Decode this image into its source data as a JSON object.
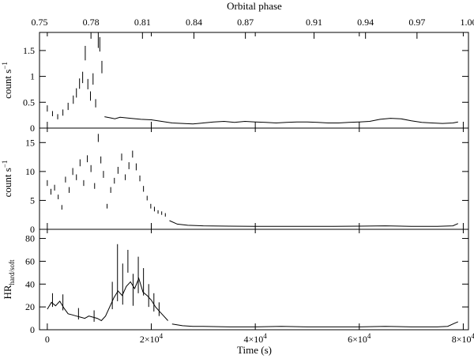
{
  "chart_data": {
    "type": "line",
    "top_axis": {
      "label": "Orbital phase",
      "tick_labels": [
        "0.75",
        "0.78",
        "0.81",
        "0.84",
        "0.87",
        "0.91",
        "0.94",
        "0.97",
        "1.00"
      ],
      "tick_values": [
        0.75,
        0.78,
        0.81,
        0.84,
        0.87,
        0.91,
        0.94,
        0.97,
        1.0
      ],
      "range": [
        0.75,
        1.0
      ]
    },
    "x_axis": {
      "label": "Time (s)",
      "range": [
        -1500,
        81000
      ],
      "ticks": [
        {
          "value": 0,
          "base": "0",
          "exp": ""
        },
        {
          "value": 20000,
          "base": "2×10",
          "exp": "4"
        },
        {
          "value": 40000,
          "base": "4×10",
          "exp": "4"
        },
        {
          "value": 60000,
          "base": "6×10",
          "exp": "4"
        },
        {
          "value": 80000,
          "base": "8×10",
          "exp": "4"
        }
      ]
    },
    "panels": [
      {
        "ylabel_main": "count s",
        "ylabel_sup": "−1",
        "ylabel_sub": "",
        "ylim": [
          0,
          1.85
        ],
        "yticks": [
          {
            "value": 0,
            "label": "0"
          },
          {
            "value": 0.5,
            "label": "0.5"
          },
          {
            "value": 1,
            "label": "1"
          },
          {
            "value": 1.5,
            "label": "1.5"
          }
        ],
        "segments": [
          {
            "style": "errorbars",
            "x": [
              0,
              1000,
              2000,
              3000,
              4000,
              5000,
              5600,
              6200,
              6800,
              7300,
              7800,
              8300,
              8800,
              9300,
              9800,
              10100,
              10500
            ],
            "y": [
              0.38,
              0.28,
              0.22,
              0.3,
              0.42,
              0.55,
              0.68,
              0.86,
              0.98,
              1.45,
              0.85,
              0.62,
              0.95,
              0.48,
              1.7,
              1.62,
              1.18
            ],
            "err": [
              0.06,
              0.05,
              0.05,
              0.06,
              0.07,
              0.08,
              0.09,
              0.1,
              0.11,
              0.14,
              0.1,
              0.09,
              0.11,
              0.08,
              0.15,
              0.14,
              0.12
            ]
          },
          {
            "style": "line",
            "x": [
              11000,
              12000,
              13000,
              14000,
              16000,
              18000,
              20000,
              22000,
              24000,
              26000,
              28000,
              30000,
              32000,
              34000,
              36000,
              38000,
              40000,
              42000,
              44000,
              46000,
              48000,
              50000,
              52000,
              54000,
              56000,
              58000,
              60000,
              62000,
              64000,
              66000,
              68000,
              70000,
              72000,
              74000,
              76000,
              78000,
              79000
            ],
            "y": [
              0.22,
              0.2,
              0.18,
              0.21,
              0.19,
              0.17,
              0.16,
              0.13,
              0.1,
              0.09,
              0.08,
              0.1,
              0.12,
              0.13,
              0.11,
              0.13,
              0.12,
              0.11,
              0.1,
              0.11,
              0.12,
              0.12,
              0.11,
              0.1,
              0.1,
              0.11,
              0.12,
              0.13,
              0.17,
              0.19,
              0.18,
              0.14,
              0.11,
              0.1,
              0.09,
              0.1,
              0.12
            ]
          }
        ]
      },
      {
        "ylabel_main": "count s",
        "ylabel_sup": "−1",
        "ylabel_sub": "",
        "ylim": [
          0,
          17.5
        ],
        "yticks": [
          {
            "value": 0,
            "label": "0"
          },
          {
            "value": 5,
            "label": "5"
          },
          {
            "value": 10,
            "label": "10"
          },
          {
            "value": 15,
            "label": "15"
          }
        ],
        "segments": [
          {
            "style": "errorbars",
            "x": [
              0,
              700,
              1400,
              2100,
              2800,
              3500,
              4200,
              4900,
              5600,
              6300,
              7000,
              7700,
              8400,
              9100,
              9800,
              10300,
              10800,
              11500,
              12200,
              12900,
              13600,
              14300,
              15000,
              15700,
              16400,
              17100,
              17800,
              18500,
              19200,
              19900,
              20600,
              21300,
              22000,
              22700
            ],
            "y": [
              8.0,
              6.5,
              7.2,
              5.6,
              3.8,
              8.6,
              6.8,
              10.0,
              9.0,
              11.5,
              8.0,
              12.2,
              10.5,
              7.5,
              15.8,
              12.0,
              9.5,
              4.0,
              6.8,
              8.4,
              10.2,
              12.5,
              9.0,
              11.0,
              13.0,
              10.8,
              8.8,
              7.0,
              5.4,
              4.0,
              3.5,
              3.0,
              2.8,
              2.5
            ],
            "err": [
              0.5,
              0.5,
              0.5,
              0.4,
              0.4,
              0.5,
              0.5,
              0.6,
              0.5,
              0.6,
              0.5,
              0.6,
              0.6,
              0.5,
              0.7,
              0.6,
              0.6,
              0.4,
              0.5,
              0.5,
              0.6,
              0.6,
              0.5,
              0.6,
              0.6,
              0.6,
              0.5,
              0.5,
              0.4,
              0.4,
              0.4,
              0.3,
              0.3,
              0.3
            ]
          },
          {
            "style": "line",
            "x": [
              23500,
              25000,
              27000,
              30000,
              35000,
              40000,
              45000,
              50000,
              55000,
              60000,
              65000,
              70000,
              75000,
              78000,
              79000
            ],
            "y": [
              1.5,
              0.9,
              0.7,
              0.6,
              0.55,
              0.5,
              0.5,
              0.5,
              0.5,
              0.55,
              0.6,
              0.5,
              0.5,
              0.6,
              1.0
            ]
          }
        ]
      },
      {
        "ylabel_main": "HR",
        "ylabel_sup": "",
        "ylabel_sub": "hard/soft",
        "ylim": [
          0,
          88
        ],
        "yticks": [
          {
            "value": 0,
            "label": "0"
          },
          {
            "value": 20,
            "label": "20"
          },
          {
            "value": 40,
            "label": "40"
          },
          {
            "value": 60,
            "label": "60"
          },
          {
            "value": 80,
            "label": "80"
          }
        ],
        "segments": [
          {
            "style": "line",
            "x": [
              0,
              800,
              1600,
              2400,
              3200,
              4000,
              4800,
              5600,
              6400,
              7200,
              8000,
              8800,
              9600,
              10400,
              11200,
              12000,
              12800,
              13600,
              14400,
              15200,
              16000,
              16800,
              17600,
              18400,
              19200,
              20000,
              20800,
              21600,
              22400,
              23200
            ],
            "y": [
              18,
              24,
              21,
              25,
              19,
              14,
              13,
              12,
              11,
              10,
              12,
              11,
              10,
              8,
              12,
              20,
              28,
              34,
              30,
              38,
              42,
              36,
              45,
              33,
              30,
              26,
              20,
              16,
              12,
              8
            ]
          },
          {
            "style": "errorbars",
            "x": [
              1000,
              3000,
              6000,
              9000,
              12500,
              13500,
              14500,
              15500,
              16500,
              17500,
              18500,
              19500,
              20500,
              21500
            ],
            "y": [
              26,
              24,
              14,
              12,
              30,
              50,
              40,
              60,
              35,
              48,
              42,
              30,
              24,
              18
            ],
            "err": [
              6,
              7,
              5,
              5,
              12,
              25,
              18,
              10,
              14,
              16,
              12,
              10,
              8,
              6
            ]
          },
          {
            "style": "line",
            "x": [
              24000,
              26000,
              28000,
              30000,
              35000,
              40000,
              45000,
              50000,
              55000,
              60000,
              65000,
              70000,
              75000,
              77000,
              78500,
              79000
            ],
            "y": [
              5,
              3.5,
              3,
              3,
              2.5,
              2.5,
              3,
              2.5,
              2.5,
              2.5,
              3,
              2.5,
              2.5,
              3,
              6,
              7
            ]
          }
        ]
      }
    ]
  }
}
